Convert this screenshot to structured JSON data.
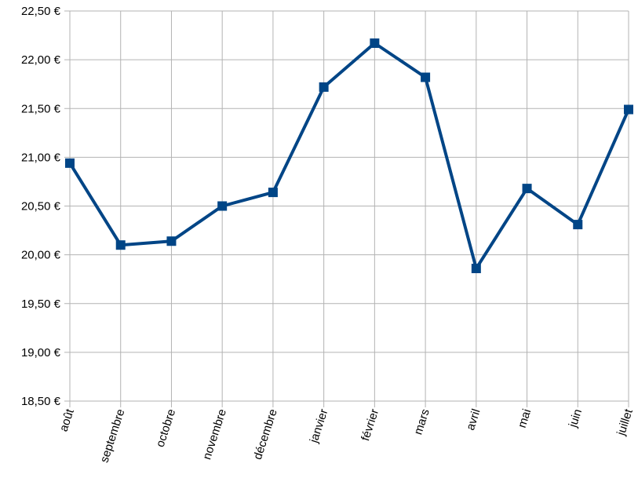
{
  "chart_data": {
    "type": "line",
    "title": "",
    "xlabel": "",
    "ylabel": "",
    "categories": [
      "août",
      "septembre",
      "octobre",
      "novembre",
      "décembre",
      "janvier",
      "février",
      "mars",
      "avril",
      "mai",
      "juin",
      "juillet"
    ],
    "series": [
      {
        "values": [
          20.94,
          20.1,
          20.14,
          20.5,
          20.64,
          21.72,
          22.17,
          21.82,
          19.86,
          20.68,
          20.31,
          21.49
        ],
        "color": "#004586",
        "marker": "square"
      }
    ],
    "ylim": [
      18.5,
      22.5
    ],
    "yticks": [
      "18,50 €",
      "19,00 €",
      "19,50 €",
      "20,00 €",
      "20,50 €",
      "21,00 €",
      "21,50 €",
      "22,00 €",
      "22,50 €"
    ],
    "grid": true,
    "legend": "none"
  }
}
